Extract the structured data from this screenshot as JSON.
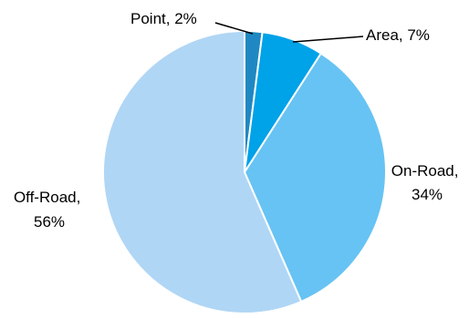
{
  "chart_data": {
    "type": "pie",
    "title": "",
    "slices": [
      {
        "label": "Point",
        "value": 2,
        "label_text": "Point, 2%",
        "color": "#1f88c2"
      },
      {
        "label": "Area",
        "value": 7,
        "label_text": "Area, 7%",
        "color": "#00a2e8"
      },
      {
        "label": "On-Road",
        "value": 34,
        "label_text": [
          "On-Road,",
          "34%"
        ],
        "color": "#67c3f3"
      },
      {
        "label": "Off-Road",
        "value": 56,
        "label_text": [
          "Off-Road,",
          "56%"
        ],
        "color": "#b0d6f5"
      }
    ],
    "legend": "none",
    "data_label_format": "category, percent"
  }
}
